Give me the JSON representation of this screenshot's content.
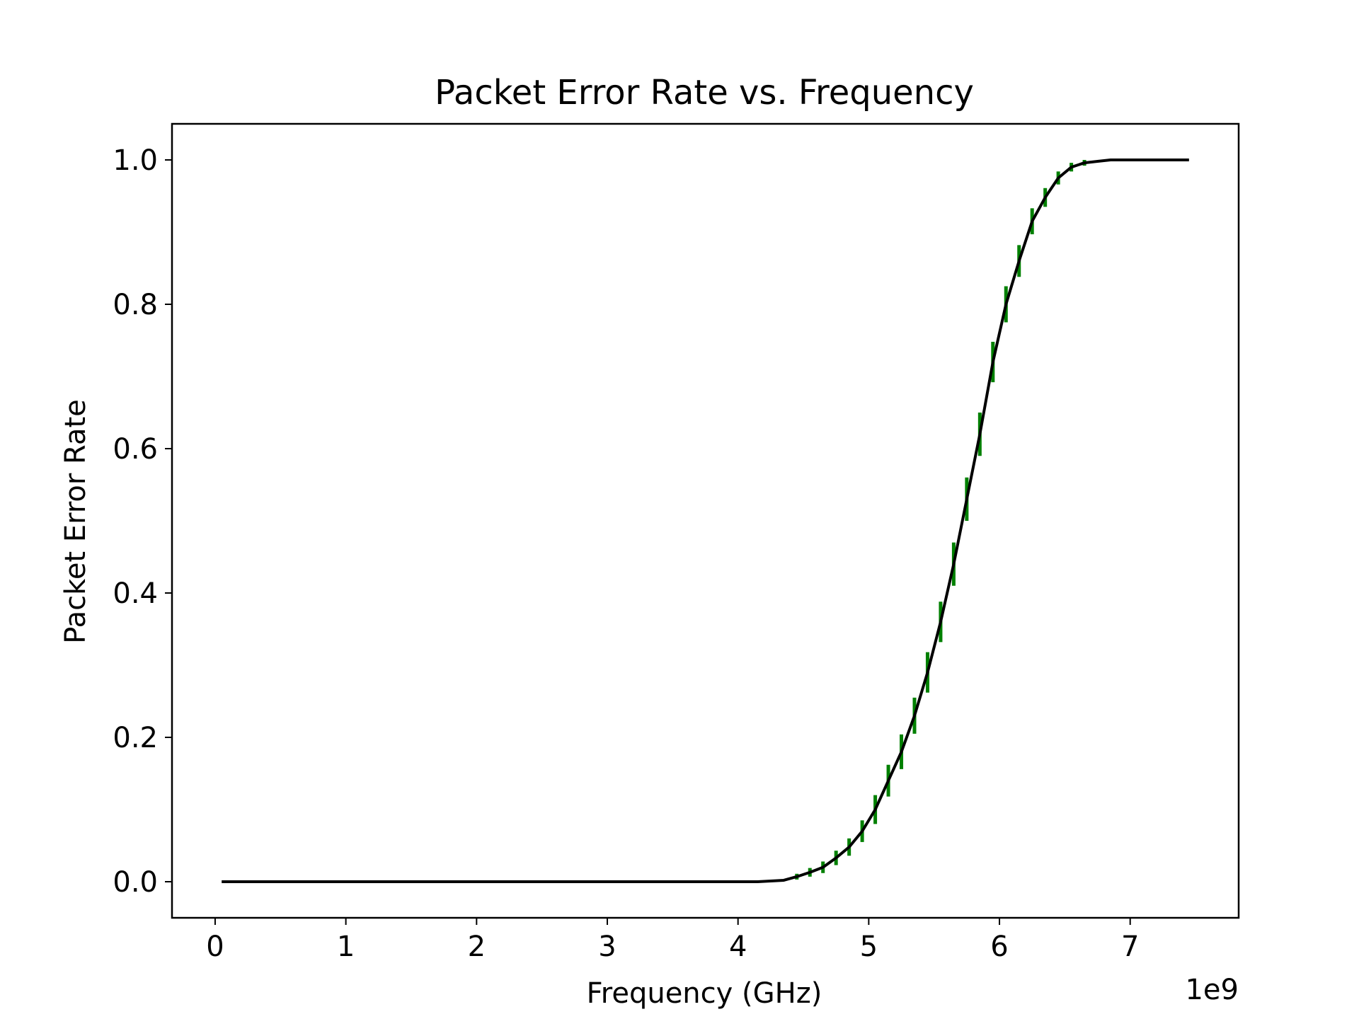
{
  "chart_data": {
    "type": "line",
    "title": "Packet Error Rate vs. Frequency",
    "xlabel": "Frequency (GHz)",
    "ylabel": "Packet Error Rate",
    "x_offset_label": "1e9",
    "xlim": [
      -0.33,
      7.83
    ],
    "ylim": [
      -0.05,
      1.05
    ],
    "x_ticks": [
      0,
      1,
      2,
      3,
      4,
      5,
      6,
      7
    ],
    "x_tick_labels": [
      "0",
      "1",
      "2",
      "3",
      "4",
      "5",
      "6",
      "7"
    ],
    "y_ticks": [
      0.0,
      0.2,
      0.4,
      0.6,
      0.8,
      1.0
    ],
    "y_tick_labels": [
      "0.0",
      "0.2",
      "0.4",
      "0.6",
      "0.8",
      "1.0"
    ],
    "grid": false,
    "colors": {
      "line": "#000000",
      "error_bars": "#008000",
      "axes": "#000000"
    },
    "series": [
      {
        "style": "line",
        "x": [
          0.05,
          4.15,
          4.35,
          4.45,
          4.55,
          4.65,
          4.75,
          4.85,
          4.95,
          5.05,
          5.15,
          5.25,
          5.35,
          5.45,
          5.55,
          5.65,
          5.75,
          5.85,
          5.95,
          6.05,
          6.15,
          6.25,
          6.35,
          6.45,
          6.55,
          6.65,
          6.75,
          6.85,
          6.95,
          7.05,
          7.45
        ],
        "y": [
          0.0,
          0.0,
          0.002,
          0.007,
          0.013,
          0.02,
          0.033,
          0.048,
          0.07,
          0.1,
          0.14,
          0.18,
          0.23,
          0.29,
          0.36,
          0.44,
          0.53,
          0.62,
          0.72,
          0.8,
          0.86,
          0.915,
          0.948,
          0.975,
          0.99,
          0.996,
          0.998,
          1.0,
          1.0,
          1.0,
          1.0
        ]
      },
      {
        "style": "errorbar",
        "x": [
          4.45,
          4.55,
          4.65,
          4.75,
          4.85,
          4.95,
          5.05,
          5.15,
          5.25,
          5.35,
          5.45,
          5.55,
          5.65,
          5.75,
          5.85,
          5.95,
          6.05,
          6.15,
          6.25,
          6.35,
          6.45,
          6.55,
          6.65
        ],
        "y": [
          0.007,
          0.013,
          0.02,
          0.033,
          0.048,
          0.07,
          0.1,
          0.14,
          0.18,
          0.23,
          0.29,
          0.36,
          0.44,
          0.53,
          0.62,
          0.72,
          0.8,
          0.86,
          0.915,
          0.948,
          0.975,
          0.99,
          0.996
        ],
        "yerr": [
          0.004,
          0.006,
          0.008,
          0.01,
          0.012,
          0.015,
          0.02,
          0.022,
          0.024,
          0.025,
          0.028,
          0.028,
          0.03,
          0.03,
          0.03,
          0.028,
          0.025,
          0.022,
          0.018,
          0.013,
          0.009,
          0.006,
          0.004
        ]
      }
    ]
  }
}
